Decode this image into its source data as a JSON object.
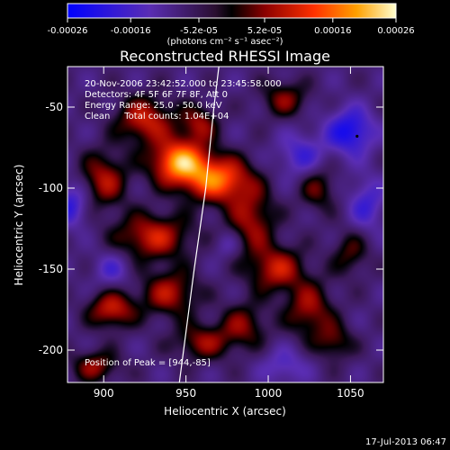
{
  "chart_data": {
    "type": "heatmap",
    "title": "Reconstructed RHESSI Image",
    "xlabel": "Heliocentric X (arcsec)",
    "ylabel": "Heliocentric Y (arcsec)",
    "xlim": [
      878,
      1070
    ],
    "ylim": [
      -220,
      -25
    ],
    "x_ticks": [
      900,
      950,
      1000,
      1050
    ],
    "y_ticks": [
      -50,
      -100,
      -150,
      -200
    ],
    "colorbar": {
      "ticks": [
        "-0.00026",
        "-0.00016",
        "-5.2e-05",
        "5.2e-05",
        "0.00016",
        "0.00026"
      ],
      "units": "(photons cm⁻² s⁻¹ asec⁻²)",
      "range": [
        -0.00026,
        0.00026
      ]
    },
    "annotations": {
      "time": "20-Nov-2006 23:42:52.000 to 23:45:58.000",
      "detectors": "Detectors: 4F 5F 6F 7F 8F, Att 0",
      "energy": "Energy Range: 25.0 - 50.0 keV",
      "clean": "Clean     Total counts: 1.04E+04",
      "peak": "Position of Peak = [944,-85]"
    },
    "peak_position": [
      944,
      -85
    ],
    "limb_curve": [
      [
        946,
        -220
      ],
      [
        955,
        -150
      ],
      [
        962,
        -100
      ],
      [
        967,
        -50
      ],
      [
        970,
        -25
      ]
    ],
    "sources": [
      {
        "x": 946,
        "y": -84,
        "amp": 0.00026,
        "sx": 12,
        "sy": 10
      },
      {
        "x": 970,
        "y": -95,
        "amp": 0.00022,
        "sx": 14,
        "sy": 10
      },
      {
        "x": 925,
        "y": -58,
        "amp": 0.00016,
        "sx": 12,
        "sy": 10
      },
      {
        "x": 958,
        "y": -60,
        "amp": 0.00012,
        "sx": 8,
        "sy": 8
      },
      {
        "x": 900,
        "y": -95,
        "amp": 0.00014,
        "sx": 10,
        "sy": 12
      },
      {
        "x": 930,
        "y": -130,
        "amp": 0.00016,
        "sx": 16,
        "sy": 10
      },
      {
        "x": 990,
        "y": -120,
        "amp": 0.00013,
        "sx": 10,
        "sy": 14
      },
      {
        "x": 1005,
        "y": -150,
        "amp": 0.00015,
        "sx": 12,
        "sy": 10
      },
      {
        "x": 1025,
        "y": -175,
        "amp": 0.00013,
        "sx": 10,
        "sy": 12
      },
      {
        "x": 1040,
        "y": -195,
        "amp": 0.0001,
        "sx": 8,
        "sy": 8
      },
      {
        "x": 905,
        "y": -175,
        "amp": 0.00016,
        "sx": 10,
        "sy": 8
      },
      {
        "x": 940,
        "y": -165,
        "amp": 0.00014,
        "sx": 12,
        "sy": 10
      },
      {
        "x": 960,
        "y": -195,
        "amp": 0.00012,
        "sx": 12,
        "sy": 8
      },
      {
        "x": 895,
        "y": -210,
        "amp": 0.00012,
        "sx": 10,
        "sy": 7
      },
      {
        "x": 1010,
        "y": -45,
        "amp": 0.00011,
        "sx": 10,
        "sy": 8
      },
      {
        "x": 1030,
        "y": -100,
        "amp": 0.0001,
        "sx": 8,
        "sy": 10
      },
      {
        "x": 985,
        "y": -185,
        "amp": 0.00011,
        "sx": 10,
        "sy": 10
      },
      {
        "x": 1050,
        "y": -140,
        "amp": 9e-05,
        "sx": 8,
        "sy": 10
      },
      {
        "x": 1050,
        "y": -65,
        "amp": -0.00016,
        "sx": 10,
        "sy": 10
      },
      {
        "x": 1020,
        "y": -80,
        "amp": -0.0001,
        "sx": 10,
        "sy": 10
      },
      {
        "x": 880,
        "y": -110,
        "amp": -0.00012,
        "sx": 8,
        "sy": 10
      },
      {
        "x": 1060,
        "y": -110,
        "amp": -0.0001,
        "sx": 8,
        "sy": 12
      },
      {
        "x": 905,
        "y": -150,
        "amp": -8e-05,
        "sx": 8,
        "sy": 8
      },
      {
        "x": 1010,
        "y": -210,
        "amp": -8e-05,
        "sx": 10,
        "sy": 8
      },
      {
        "x": 975,
        "y": -135,
        "amp": -6e-05,
        "sx": 6,
        "sy": 6
      }
    ]
  },
  "footer": {
    "date": "17-Jul-2013 06:47"
  }
}
